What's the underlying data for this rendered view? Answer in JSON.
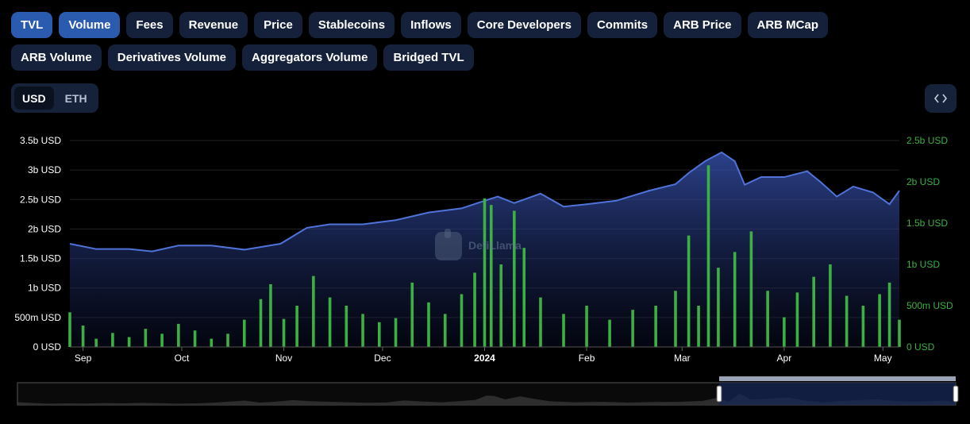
{
  "metric_tabs": [
    {
      "label": "TVL",
      "active": true
    },
    {
      "label": "Volume",
      "active": true
    },
    {
      "label": "Fees",
      "active": false
    },
    {
      "label": "Revenue",
      "active": false
    },
    {
      "label": "Price",
      "active": false
    },
    {
      "label": "Stablecoins",
      "active": false
    },
    {
      "label": "Inflows",
      "active": false
    },
    {
      "label": "Core Developers",
      "active": false
    },
    {
      "label": "Commits",
      "active": false
    },
    {
      "label": "ARB Price",
      "active": false
    },
    {
      "label": "ARB MCap",
      "active": false
    },
    {
      "label": "ARB Volume",
      "active": false
    },
    {
      "label": "Derivatives Volume",
      "active": false
    },
    {
      "label": "Aggregators Volume",
      "active": false
    },
    {
      "label": "Bridged TVL",
      "active": false
    }
  ],
  "currency": {
    "options": [
      "USD",
      "ETH"
    ],
    "selected": "USD"
  },
  "embed_icon": "code-brackets-icon",
  "watermark": "DefiLlama",
  "colors": {
    "tvl_line": "#4f73d9",
    "volume_bar": "#3cb043",
    "active_tab": "#2b5bae",
    "tab_bg": "#15213a",
    "right_axis_text": "#3cb043"
  },
  "chart_data": {
    "type": "line+bar",
    "x_start": "2023-08-28",
    "x_end": "2024-05-06",
    "xtick_labels": [
      "Sep",
      "Oct",
      "Nov",
      "Dec",
      "2024",
      "Feb",
      "Mar",
      "Apr",
      "May"
    ],
    "xtick_dates": [
      "2023-09-01",
      "2023-10-01",
      "2023-11-01",
      "2023-12-01",
      "2024-01-01",
      "2024-02-01",
      "2024-03-01",
      "2024-04-01",
      "2024-05-01"
    ],
    "y_left": {
      "ticks": [
        "0 USD",
        "500m USD",
        "1b USD",
        "1.5b USD",
        "2b USD",
        "2.5b USD",
        "3b USD",
        "3.5b USD"
      ],
      "range": [
        0,
        3.5
      ],
      "unit": "b USD"
    },
    "y_right": {
      "ticks": [
        "0 USD",
        "500m USD",
        "1b USD",
        "1.5b USD",
        "2b USD",
        "2.5b USD"
      ],
      "range": [
        0,
        2.5
      ],
      "unit": "b USD"
    },
    "series": [
      {
        "name": "TVL",
        "type": "area",
        "axis": "left",
        "points": [
          [
            "2023-08-28",
            1.75
          ],
          [
            "2023-09-05",
            1.66
          ],
          [
            "2023-09-15",
            1.66
          ],
          [
            "2023-09-22",
            1.62
          ],
          [
            "2023-09-30",
            1.72
          ],
          [
            "2023-10-10",
            1.72
          ],
          [
            "2023-10-20",
            1.65
          ],
          [
            "2023-10-31",
            1.75
          ],
          [
            "2023-11-08",
            2.02
          ],
          [
            "2023-11-15",
            2.08
          ],
          [
            "2023-11-25",
            2.08
          ],
          [
            "2023-12-05",
            2.15
          ],
          [
            "2023-12-15",
            2.28
          ],
          [
            "2023-12-25",
            2.35
          ],
          [
            "2024-01-01",
            2.48
          ],
          [
            "2024-01-05",
            2.55
          ],
          [
            "2024-01-10",
            2.44
          ],
          [
            "2024-01-18",
            2.6
          ],
          [
            "2024-01-25",
            2.38
          ],
          [
            "2024-02-01",
            2.42
          ],
          [
            "2024-02-10",
            2.48
          ],
          [
            "2024-02-20",
            2.65
          ],
          [
            "2024-02-28",
            2.76
          ],
          [
            "2024-03-03",
            2.95
          ],
          [
            "2024-03-08",
            3.15
          ],
          [
            "2024-03-13",
            3.3
          ],
          [
            "2024-03-17",
            3.15
          ],
          [
            "2024-03-20",
            2.75
          ],
          [
            "2024-03-25",
            2.88
          ],
          [
            "2024-04-01",
            2.88
          ],
          [
            "2024-04-08",
            2.98
          ],
          [
            "2024-04-12",
            2.8
          ],
          [
            "2024-04-17",
            2.55
          ],
          [
            "2024-04-22",
            2.72
          ],
          [
            "2024-04-28",
            2.62
          ],
          [
            "2024-05-03",
            2.42
          ],
          [
            "2024-05-06",
            2.65
          ]
        ]
      },
      {
        "name": "Volume",
        "type": "bar",
        "axis": "right",
        "points": [
          [
            "2023-08-28",
            0.42
          ],
          [
            "2023-09-01",
            0.26
          ],
          [
            "2023-09-05",
            0.1
          ],
          [
            "2023-09-10",
            0.17
          ],
          [
            "2023-09-15",
            0.12
          ],
          [
            "2023-09-20",
            0.22
          ],
          [
            "2023-09-25",
            0.16
          ],
          [
            "2023-09-30",
            0.28
          ],
          [
            "2023-10-05",
            0.2
          ],
          [
            "2023-10-10",
            0.1
          ],
          [
            "2023-10-15",
            0.16
          ],
          [
            "2023-10-20",
            0.33
          ],
          [
            "2023-10-25",
            0.58
          ],
          [
            "2023-10-28",
            0.76
          ],
          [
            "2023-11-01",
            0.34
          ],
          [
            "2023-11-05",
            0.5
          ],
          [
            "2023-11-10",
            0.86
          ],
          [
            "2023-11-15",
            0.6
          ],
          [
            "2023-11-20",
            0.5
          ],
          [
            "2023-11-25",
            0.4
          ],
          [
            "2023-11-30",
            0.3
          ],
          [
            "2023-12-05",
            0.35
          ],
          [
            "2023-12-10",
            0.78
          ],
          [
            "2023-12-15",
            0.54
          ],
          [
            "2023-12-20",
            0.4
          ],
          [
            "2023-12-25",
            0.64
          ],
          [
            "2023-12-29",
            0.9
          ],
          [
            "2024-01-01",
            1.8
          ],
          [
            "2024-01-03",
            1.72
          ],
          [
            "2024-01-06",
            1.0
          ],
          [
            "2024-01-10",
            1.65
          ],
          [
            "2024-01-13",
            1.2
          ],
          [
            "2024-01-18",
            0.6
          ],
          [
            "2024-01-25",
            0.4
          ],
          [
            "2024-02-01",
            0.5
          ],
          [
            "2024-02-08",
            0.33
          ],
          [
            "2024-02-15",
            0.45
          ],
          [
            "2024-02-22",
            0.5
          ],
          [
            "2024-02-28",
            0.68
          ],
          [
            "2024-03-03",
            1.35
          ],
          [
            "2024-03-06",
            0.5
          ],
          [
            "2024-03-09",
            2.2
          ],
          [
            "2024-03-12",
            0.96
          ],
          [
            "2024-03-17",
            1.15
          ],
          [
            "2024-03-22",
            1.4
          ],
          [
            "2024-03-27",
            0.68
          ],
          [
            "2024-04-01",
            0.36
          ],
          [
            "2024-04-05",
            0.66
          ],
          [
            "2024-04-10",
            0.85
          ],
          [
            "2024-04-15",
            1.0
          ],
          [
            "2024-04-20",
            0.62
          ],
          [
            "2024-04-25",
            0.5
          ],
          [
            "2024-04-30",
            0.64
          ],
          [
            "2024-05-03",
            0.78
          ],
          [
            "2024-05-06",
            0.33
          ]
        ]
      }
    ],
    "grid": true,
    "legend": "none",
    "brush_range": [
      "2023-08-28",
      "2024-05-06"
    ]
  }
}
